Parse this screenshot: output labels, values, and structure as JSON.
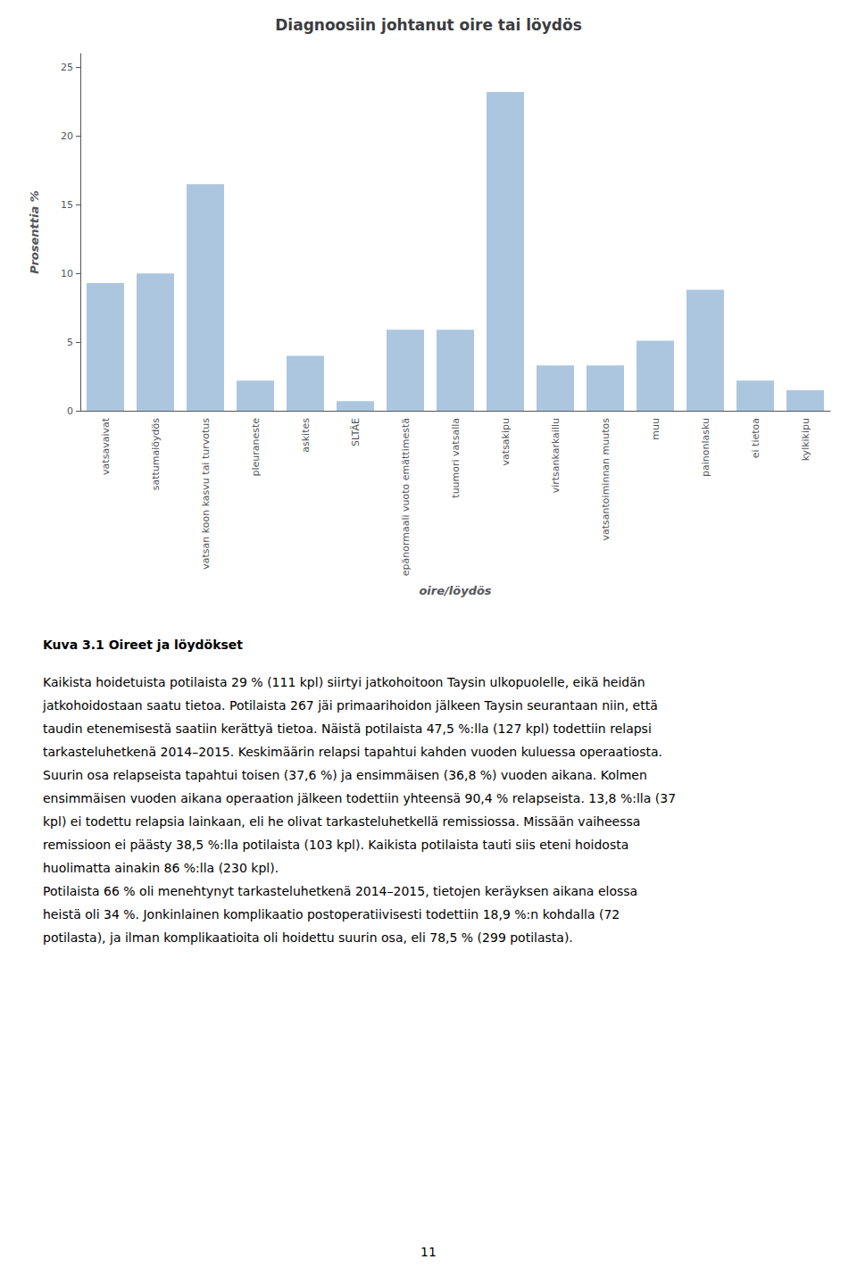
{
  "chart_data": {
    "type": "bar",
    "title": "Diagnoosiin johtanut oire tai löydös",
    "xlabel": "oire/löydös",
    "ylabel": "Prosenttia %",
    "categories": [
      "vatsavaivat",
      "sattumalöydös",
      "vatsan koon kasvu tai turvotus",
      "pleuraneste",
      "askites",
      "SLTÄE",
      "epänormaali vuoto emättimestä",
      "tuumori vatsalla",
      "vatsakipu",
      "virtsankarkaillu",
      "vatsantoiminnan muutos",
      "muu",
      "painonlasku",
      "ei tietoa",
      "kylkikipu"
    ],
    "values": [
      9.3,
      10.0,
      16.5,
      2.2,
      4.0,
      0.7,
      5.9,
      5.9,
      23.2,
      3.3,
      3.3,
      5.1,
      8.8,
      2.2,
      1.5
    ],
    "color": "#adc6e0",
    "ylim": [
      0,
      26
    ],
    "yticks": [
      0,
      5,
      10,
      15,
      20,
      25
    ],
    "grid": false,
    "annotations": [
      "Kuva 3.1 Oireet ja löydökset",
      "Kaikista hoidetuista potilaista 29 % (111 kpl) siirtyi jatkohoitoon Taysin ulkopuolelle, eikä heidän",
      "jatkohoidostaan saatu tietoa. Potilaista 267 jäi primaarihoidon jälkeen Taysin seurantaan niin, että",
      "taudin etenemisestä saatiin kerättyä tietoa. Näistä potilaista 47,5 %:lla (127 kpl) todettiin relapsi",
      "tarkasteluhetkenä 2014–2015. Keskimäärin relapsi tapahtui kahden vuoden kuluessa operaatiosta.",
      "Suurin osa relapseista tapahtui toisen (37,6 %) ja ensimmäisen (36,8 %) vuoden aikana. Kolmen",
      "ensimmäisen vuoden aikana operaation jälkeen todettiin yhteensä 90,4 % relapseista. 13,8 %:lla (37",
      "kpl) ei todettu relapsia lainkaan, eli he olivat tarkasteluhetkellä remissiossa. Missään vaiheessa",
      "remissioon ei päästy 38,5 %:lla potilaista (103 kpl). Kaikista potilaista tauti siis eteni hoidosta",
      "huolimatta ainakin 86 %:lla (230 kpl).",
      "Potilaista 66 % oli menehtynyt tarkasteluhetkenä 2014–2015, tietojen keräyksen aikana elossa",
      "heistä oli 34 %. Jonkinlainen komplikaatio postoperatiivisesti todettiin 18,9 %:n kohdalla (72",
      "potilasta), ja ilman komplikaatioita oli hoidettu suurin osa, eli 78,5 % (299 potilasta).",
      "11"
    ]
  }
}
